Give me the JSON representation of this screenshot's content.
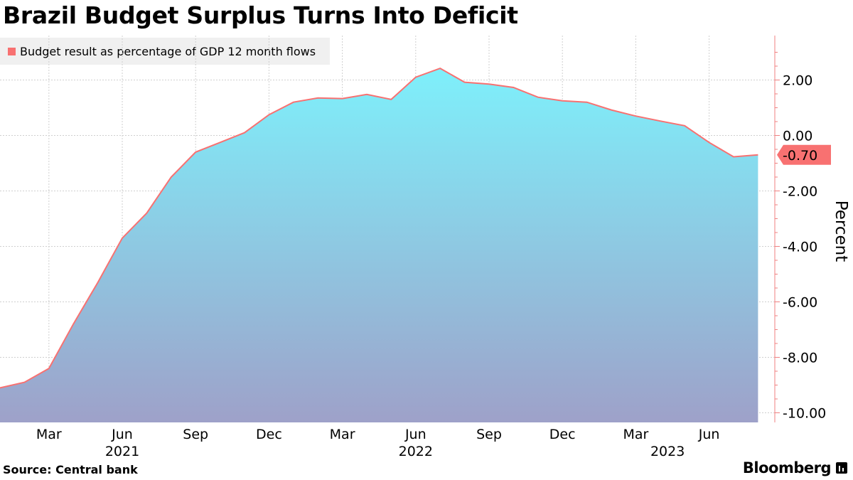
{
  "title": "Brazil Budget Surplus Turns Into Deficit",
  "source": "Source:  Central bank",
  "brand": "Bloomberg",
  "colors": {
    "line": "#f87171",
    "fill_top": "#7ef0fb",
    "fill_bottom": "#9ea1c9",
    "grid": "#cfcfcf",
    "axis": "#f08080",
    "legend_bg": "#f0f0f0",
    "callout": "#f87171"
  },
  "chart_data": {
    "type": "area",
    "title": "Brazil Budget Surplus Turns Into Deficit",
    "ylabel": "Percent",
    "xlabel": "",
    "ylim": [
      -10.3,
      3.5
    ],
    "yticks": [
      {
        "value": 2,
        "label": "2.00"
      },
      {
        "value": 0,
        "label": "0.00"
      },
      {
        "value": -2,
        "label": "-2.00"
      },
      {
        "value": -4,
        "label": "-4.00"
      },
      {
        "value": -6,
        "label": "-6.00"
      },
      {
        "value": -8,
        "label": "-8.00"
      },
      {
        "value": -10,
        "label": "-10.00"
      }
    ],
    "xticks": [
      {
        "x": 2,
        "label": "Mar"
      },
      {
        "x": 5,
        "label": "Jun"
      },
      {
        "x": 8,
        "label": "Sep"
      },
      {
        "x": 11,
        "label": "Dec"
      },
      {
        "x": 14,
        "label": "Mar"
      },
      {
        "x": 17,
        "label": "Jun"
      },
      {
        "x": 20,
        "label": "Sep"
      },
      {
        "x": 23,
        "label": "Dec"
      },
      {
        "x": 26,
        "label": "Mar"
      },
      {
        "x": 29,
        "label": "Jun"
      }
    ],
    "year_labels": [
      {
        "x": 5,
        "label": "2021"
      },
      {
        "x": 17,
        "label": "2022"
      },
      {
        "x": 27.3,
        "label": "2023"
      }
    ],
    "series": [
      {
        "name": "Budget result as percentage of GDP 12 month flows",
        "x": [
          0,
          1,
          2,
          3,
          4,
          5,
          6,
          7,
          8,
          9,
          10,
          11,
          12,
          13,
          14,
          15,
          16,
          17,
          18,
          19,
          20,
          21,
          22,
          23,
          24,
          25,
          26,
          27,
          28,
          29,
          30,
          31
        ],
        "values": [
          -9.1,
          -8.9,
          -8.4,
          -6.8,
          -5.3,
          -3.7,
          -2.8,
          -1.5,
          -0.6,
          -0.25,
          0.1,
          0.75,
          1.2,
          1.35,
          1.33,
          1.48,
          1.3,
          2.1,
          2.42,
          1.92,
          1.85,
          1.73,
          1.38,
          1.25,
          1.2,
          0.92,
          0.7,
          0.52,
          0.35,
          -0.25,
          -0.77,
          -0.7
        ]
      }
    ],
    "last_value_label": "-0.70",
    "grid": true,
    "legend_position": "top-left"
  }
}
